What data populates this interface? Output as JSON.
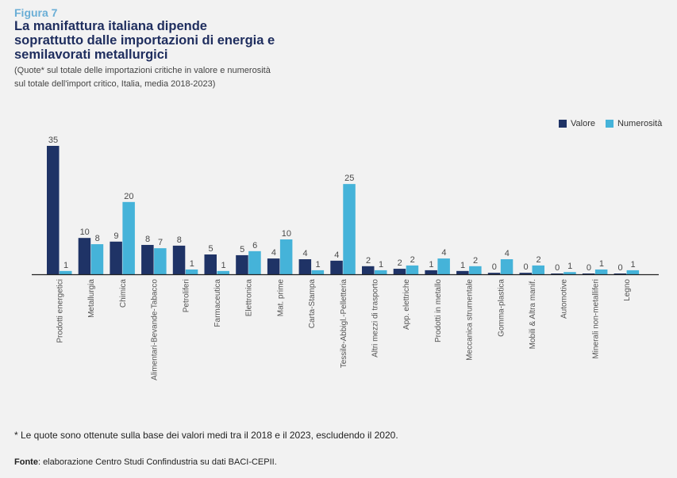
{
  "header": {
    "figure_label": "Figura 7",
    "title": "La manifattura italiana dipende soprattutto dalle importazioni di energia e semilavorati metallurgici",
    "subtitle": "(Quote* sul totale delle importazioni critiche in valore e numerosità sul totale dell'import critico, Italia, media 2018-2023)"
  },
  "colors": {
    "valore": "#1f3366",
    "numerosita": "#45b3d9"
  },
  "chart_data": {
    "type": "bar",
    "title": "La manifattura italiana dipende soprattutto dalle importazioni di energia e semilavorati metallurgici",
    "xlabel": "",
    "ylabel": "",
    "ylim": [
      0,
      35
    ],
    "grid": false,
    "legend": "top-right",
    "categories": [
      "Prodotti energetici",
      "Metallurgia",
      "Chimica",
      "Alimentari-Bevande-Tabacco",
      "Petroliferi",
      "Farmaceutica",
      "Elettronica",
      "Mat. prime",
      "Carta-Stampa",
      "Tessile-Abbigl.-Pelletteria",
      "Altri mezzi di trasporto",
      "App. elettriche",
      "Prodotti in metallo",
      "Meccanica strumentale",
      "Gomma-plastica",
      "Mobili & Altra manif.",
      "Automotive",
      "Minerali non-metalliferi",
      "Legno"
    ],
    "series": [
      {
        "name": "Valore",
        "values": [
          35.0,
          9.9,
          8.9,
          8.0,
          7.8,
          5.4,
          5.2,
          4.3,
          4.1,
          3.7,
          2.2,
          1.5,
          1.1,
          0.9,
          0.4,
          0.4,
          0.2,
          0.2,
          0.2
        ],
        "labels": [
          "35",
          "10",
          "9",
          "8",
          "8",
          "5",
          "5",
          "4",
          "4",
          "4",
          "2",
          "2",
          "1",
          "1",
          "0",
          "0",
          "0",
          "0",
          "0"
        ]
      },
      {
        "name": "Numerosità",
        "values": [
          0.9,
          8.2,
          19.7,
          7.1,
          1.3,
          0.9,
          6.3,
          9.5,
          1.1,
          24.6,
          1.1,
          2.4,
          4.3,
          2.2,
          4.1,
          2.4,
          0.6,
          1.3,
          1.1
        ],
        "labels": [
          "1",
          "8",
          "20",
          "7",
          "1",
          "1",
          "6",
          "10",
          "1",
          "25",
          "1",
          "2",
          "4",
          "2",
          "4",
          "2",
          "1",
          "1",
          "1"
        ]
      }
    ]
  },
  "footnote": "* Le quote sono ottenute sulla base dei valori medi tra il 2018 e il 2023, escludendo il 2020.",
  "source": {
    "label": "Fonte",
    "text": ": elaborazione Centro Studi Confindustria su dati BACI-CEPII."
  }
}
